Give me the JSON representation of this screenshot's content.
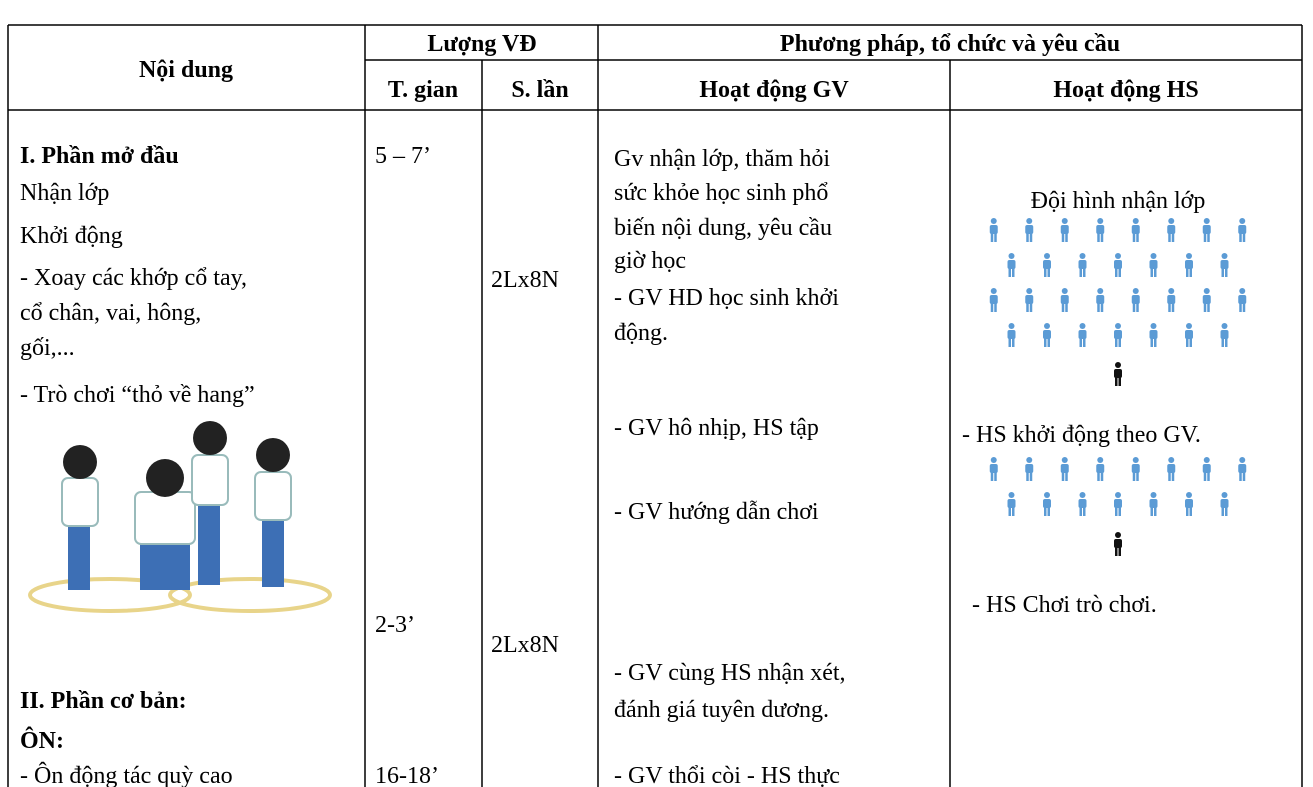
{
  "table": {
    "header": {
      "noi_dung": "Nội dung",
      "luong_vd": "Lượng VĐ",
      "phuong_phap": "Phương pháp, tổ chức và yêu cầu",
      "t_gian": "T. gian",
      "s_lan": "S. lần",
      "hd_gv": "Hoạt động GV",
      "hd_hs": "Hoạt động HS"
    },
    "noi_dung": [
      "I. Phần mở đầu",
      "Nhận lớp",
      "Khởi động",
      "- Xoay các khớp cổ tay,",
      "cổ chân, vai, hông,",
      "gối,...",
      "- Trò chơi “thỏ về hang”",
      "II. Phần cơ bản:",
      "ÔN:",
      "- Ôn động tác quỳ cao"
    ],
    "t_gian": [
      "5 – 7’",
      "2-3’",
      "16-18’"
    ],
    "s_lan": [
      "2Lx8N",
      "2Lx8N"
    ],
    "hd_gv": [
      "Gv nhận lớp, thăm hỏi",
      "sức khỏe học sinh phổ",
      "biến nội dung, yêu cầu",
      "giờ học",
      "- GV HD học sinh khởi",
      "động.",
      "- GV hô nhịp, HS tập",
      "- GV hướng dẫn chơi",
      "- GV cùng HS nhận xét,",
      "đánh giá tuyên dương.",
      "- GV thổi còi - HS thực"
    ],
    "hd_hs": [
      "Đội hình nhận lớp",
      "- HS khởi động theo GV.",
      "- HS Chơi trò chơi."
    ]
  }
}
